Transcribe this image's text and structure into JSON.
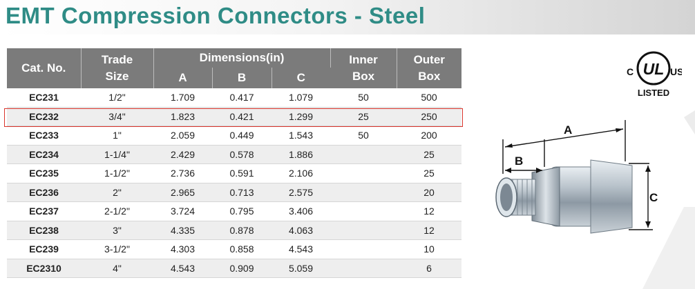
{
  "title": "EMT Compression Connectors - Steel",
  "table": {
    "headers": {
      "cat": "Cat. No.",
      "trade_line1": "Trade",
      "trade_line2": "Size",
      "dimensions": "Dimensions(in)",
      "a": "A",
      "b": "B",
      "c": "C",
      "inner_line1": "Inner",
      "inner_line2": "Box",
      "outer_line1": "Outer",
      "outer_line2": "Box"
    },
    "rows": [
      {
        "cat": "EC231",
        "size": "1/2\"",
        "a": "1.709",
        "b": "0.417",
        "c": "1.079",
        "inner": "50",
        "outer": "500"
      },
      {
        "cat": "EC232",
        "size": "3/4\"",
        "a": "1.823",
        "b": "0.421",
        "c": "1.299",
        "inner": "25",
        "outer": "250"
      },
      {
        "cat": "EC233",
        "size": "1\"",
        "a": "2.059",
        "b": "0.449",
        "c": "1.543",
        "inner": "50",
        "outer": "200"
      },
      {
        "cat": "EC234",
        "size": "1-1/4\"",
        "a": "2.429",
        "b": "0.578",
        "c": "1.886",
        "inner": "",
        "outer": "25"
      },
      {
        "cat": "EC235",
        "size": "1-1/2\"",
        "a": "2.736",
        "b": "0.591",
        "c": "2.106",
        "inner": "",
        "outer": "25"
      },
      {
        "cat": "EC236",
        "size": "2\"",
        "a": "2.965",
        "b": "0.713",
        "c": "2.575",
        "inner": "",
        "outer": "20"
      },
      {
        "cat": "EC237",
        "size": "2-1/2\"",
        "a": "3.724",
        "b": "0.795",
        "c": "3.406",
        "inner": "",
        "outer": "12"
      },
      {
        "cat": "EC238",
        "size": "3\"",
        "a": "4.335",
        "b": "0.878",
        "c": "4.063",
        "inner": "",
        "outer": "12"
      },
      {
        "cat": "EC239",
        "size": "3-1/2\"",
        "a": "4.303",
        "b": "0.858",
        "c": "4.543",
        "inner": "",
        "outer": "10"
      },
      {
        "cat": "EC2310",
        "size": "4\"",
        "a": "4.543",
        "b": "0.909",
        "c": "5.059",
        "inner": "",
        "outer": "6"
      }
    ]
  },
  "ul_mark": {
    "c": "C",
    "ul": "UL",
    "us": "US",
    "listed": "LISTED"
  },
  "diagram": {
    "label_a": "A",
    "label_b": "B",
    "label_c": "C"
  },
  "colors": {
    "title": "#2f8c86",
    "header_bg": "#7b7b7b",
    "selection": "#d9342b"
  }
}
